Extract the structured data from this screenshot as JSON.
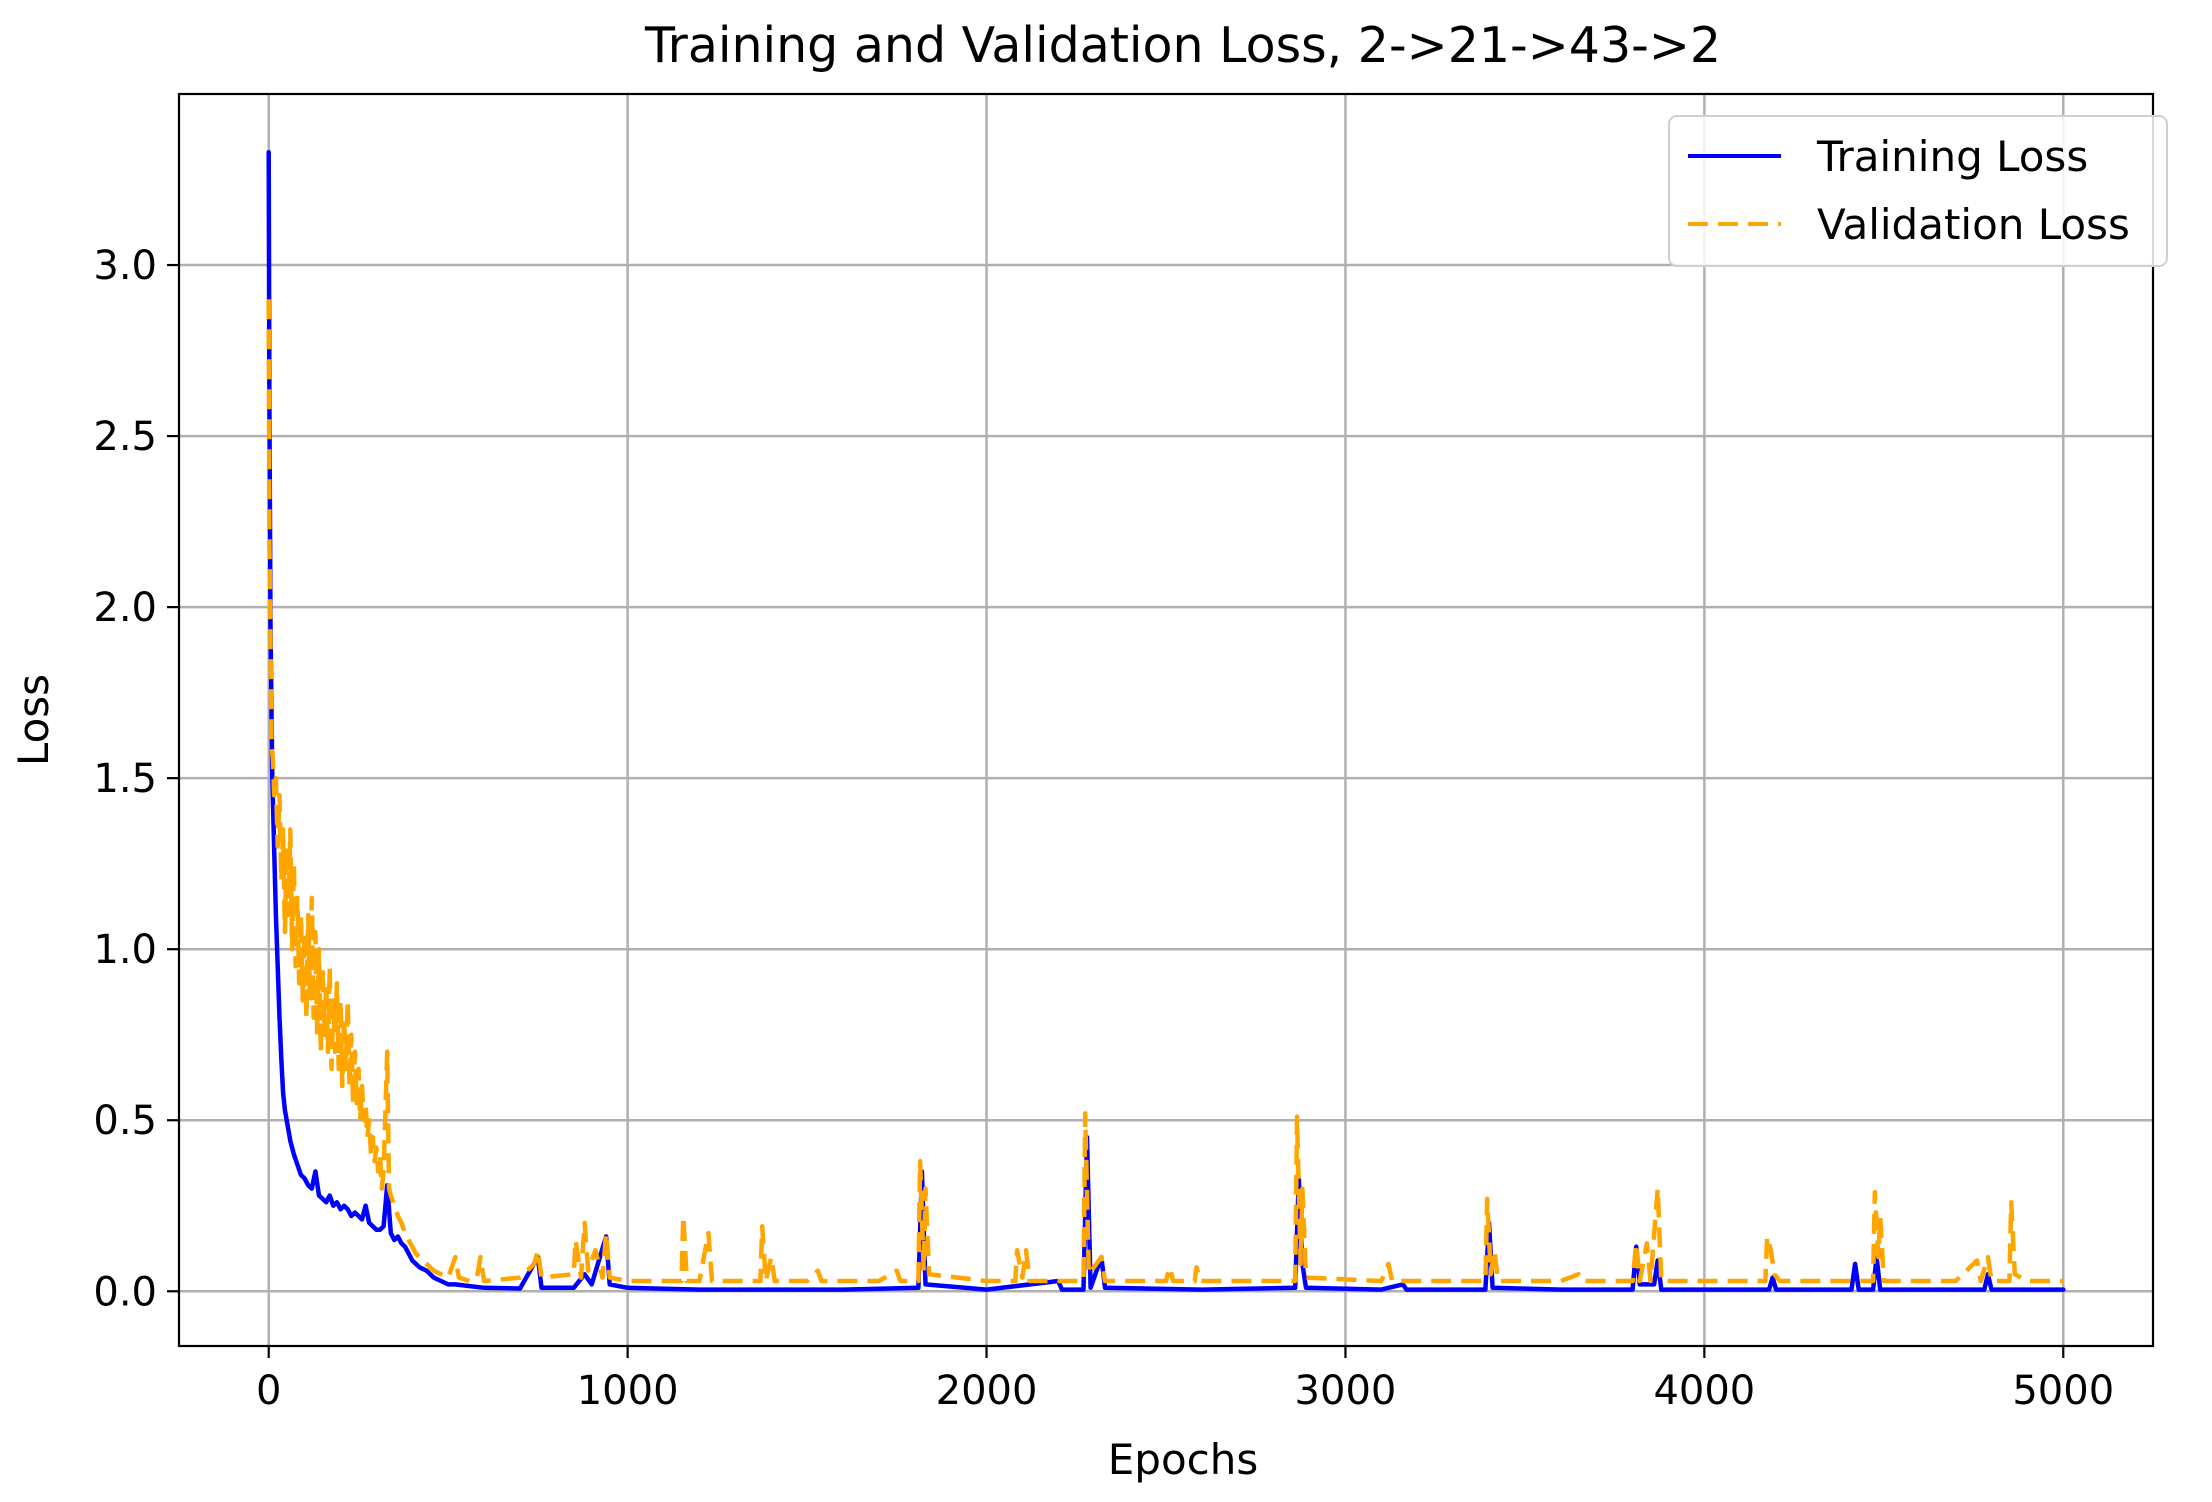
{
  "chart_data": {
    "type": "line",
    "title": "Training and Validation Loss, 2->21->43->2",
    "xlabel": "Epochs",
    "ylabel": "Loss",
    "xlim": [
      -250,
      5250
    ],
    "ylim": [
      -0.16,
      3.5
    ],
    "xticks": [
      0,
      1000,
      2000,
      3000,
      4000,
      5000
    ],
    "xtick_labels": [
      "0",
      "1000",
      "2000",
      "3000",
      "4000",
      "5000"
    ],
    "yticks": [
      0.0,
      0.5,
      1.0,
      1.5,
      2.0,
      2.5,
      3.0
    ],
    "ytick_labels": [
      "0.0",
      "0.5",
      "1.0",
      "1.5",
      "2.0",
      "2.5",
      "3.0"
    ],
    "grid": true,
    "legend_position": "top-right",
    "series": [
      {
        "name": "Training Loss",
        "color": "#0000ff",
        "style": "solid",
        "points": [
          [
            0,
            3.33
          ],
          [
            2,
            2.6
          ],
          [
            5,
            1.95
          ],
          [
            10,
            1.5
          ],
          [
            15,
            1.3
          ],
          [
            20,
            1.1
          ],
          [
            25,
            0.95
          ],
          [
            30,
            0.8
          ],
          [
            35,
            0.68
          ],
          [
            40,
            0.58
          ],
          [
            45,
            0.53
          ],
          [
            50,
            0.5
          ],
          [
            60,
            0.44
          ],
          [
            70,
            0.4
          ],
          [
            80,
            0.37
          ],
          [
            90,
            0.34
          ],
          [
            100,
            0.33
          ],
          [
            110,
            0.31
          ],
          [
            120,
            0.3
          ],
          [
            130,
            0.35
          ],
          [
            140,
            0.28
          ],
          [
            150,
            0.27
          ],
          [
            160,
            0.26
          ],
          [
            170,
            0.28
          ],
          [
            180,
            0.25
          ],
          [
            190,
            0.26
          ],
          [
            200,
            0.24
          ],
          [
            210,
            0.25
          ],
          [
            220,
            0.24
          ],
          [
            230,
            0.22
          ],
          [
            240,
            0.23
          ],
          [
            250,
            0.22
          ],
          [
            260,
            0.21
          ],
          [
            270,
            0.25
          ],
          [
            280,
            0.2
          ],
          [
            290,
            0.19
          ],
          [
            300,
            0.18
          ],
          [
            310,
            0.18
          ],
          [
            320,
            0.19
          ],
          [
            330,
            0.31
          ],
          [
            340,
            0.17
          ],
          [
            350,
            0.15
          ],
          [
            360,
            0.16
          ],
          [
            370,
            0.14
          ],
          [
            380,
            0.13
          ],
          [
            390,
            0.11
          ],
          [
            400,
            0.09
          ],
          [
            420,
            0.07
          ],
          [
            440,
            0.06
          ],
          [
            460,
            0.04
          ],
          [
            480,
            0.03
          ],
          [
            500,
            0.02
          ],
          [
            520,
            0.02
          ],
          [
            560,
            0.015
          ],
          [
            600,
            0.01
          ],
          [
            700,
            0.008
          ],
          [
            750,
            0.1
          ],
          [
            760,
            0.01
          ],
          [
            850,
            0.01
          ],
          [
            880,
            0.05
          ],
          [
            900,
            0.02
          ],
          [
            940,
            0.16
          ],
          [
            950,
            0.02
          ],
          [
            1000,
            0.01
          ],
          [
            1200,
            0.005
          ],
          [
            1400,
            0.005
          ],
          [
            1600,
            0.005
          ],
          [
            1810,
            0.01
          ],
          [
            1820,
            0.35
          ],
          [
            1830,
            0.02
          ],
          [
            2000,
            0.005
          ],
          [
            2200,
            0.03
          ],
          [
            2210,
            0.005
          ],
          [
            2270,
            0.005
          ],
          [
            2280,
            0.45
          ],
          [
            2290,
            0.01
          ],
          [
            2320,
            0.1
          ],
          [
            2330,
            0.01
          ],
          [
            2600,
            0.005
          ],
          [
            2860,
            0.01
          ],
          [
            2870,
            0.33
          ],
          [
            2880,
            0.08
          ],
          [
            2890,
            0.01
          ],
          [
            3100,
            0.005
          ],
          [
            3160,
            0.02
          ],
          [
            3170,
            0.005
          ],
          [
            3390,
            0.005
          ],
          [
            3400,
            0.2
          ],
          [
            3410,
            0.01
          ],
          [
            3600,
            0.005
          ],
          [
            3800,
            0.005
          ],
          [
            3810,
            0.13
          ],
          [
            3820,
            0.02
          ],
          [
            3860,
            0.02
          ],
          [
            3870,
            0.09
          ],
          [
            3880,
            0.005
          ],
          [
            4000,
            0.005
          ],
          [
            4180,
            0.005
          ],
          [
            4190,
            0.04
          ],
          [
            4200,
            0.005
          ],
          [
            4410,
            0.005
          ],
          [
            4420,
            0.08
          ],
          [
            4430,
            0.005
          ],
          [
            4470,
            0.005
          ],
          [
            4480,
            0.1
          ],
          [
            4490,
            0.005
          ],
          [
            4600,
            0.005
          ],
          [
            4780,
            0.005
          ],
          [
            4790,
            0.05
          ],
          [
            4800,
            0.005
          ],
          [
            4900,
            0.005
          ],
          [
            5000,
            0.005
          ]
        ]
      },
      {
        "name": "Validation Loss",
        "color": "#ffa500",
        "style": "dashed",
        "points": [
          [
            0,
            2.9
          ],
          [
            2,
            2.2
          ],
          [
            5,
            1.9
          ],
          [
            8,
            1.6
          ],
          [
            12,
            1.55
          ],
          [
            15,
            1.45
          ],
          [
            20,
            1.5
          ],
          [
            25,
            1.3
          ],
          [
            30,
            1.45
          ],
          [
            35,
            1.2
          ],
          [
            40,
            1.35
          ],
          [
            45,
            1.05
          ],
          [
            50,
            1.3
          ],
          [
            55,
            1.1
          ],
          [
            60,
            1.35
          ],
          [
            65,
            1.0
          ],
          [
            70,
            1.25
          ],
          [
            75,
            0.95
          ],
          [
            80,
            1.15
          ],
          [
            85,
            0.9
          ],
          [
            90,
            1.1
          ],
          [
            95,
            0.85
          ],
          [
            100,
            1.05
          ],
          [
            105,
            0.8
          ],
          [
            110,
            1.1
          ],
          [
            115,
            0.85
          ],
          [
            120,
            1.15
          ],
          [
            125,
            0.8
          ],
          [
            130,
            1.05
          ],
          [
            135,
            0.75
          ],
          [
            140,
            1.0
          ],
          [
            145,
            0.7
          ],
          [
            150,
            0.95
          ],
          [
            155,
            0.75
          ],
          [
            160,
            0.9
          ],
          [
            165,
            0.7
          ],
          [
            170,
            0.95
          ],
          [
            175,
            0.65
          ],
          [
            180,
            0.85
          ],
          [
            185,
            0.7
          ],
          [
            190,
            0.9
          ],
          [
            195,
            0.65
          ],
          [
            200,
            0.85
          ],
          [
            205,
            0.6
          ],
          [
            210,
            0.8
          ],
          [
            215,
            0.65
          ],
          [
            220,
            0.85
          ],
          [
            225,
            0.6
          ],
          [
            230,
            0.75
          ],
          [
            235,
            0.55
          ],
          [
            240,
            0.7
          ],
          [
            245,
            0.55
          ],
          [
            250,
            0.65
          ],
          [
            255,
            0.5
          ],
          [
            260,
            0.6
          ],
          [
            265,
            0.5
          ],
          [
            270,
            0.55
          ],
          [
            275,
            0.45
          ],
          [
            280,
            0.5
          ],
          [
            285,
            0.4
          ],
          [
            290,
            0.45
          ],
          [
            295,
            0.38
          ],
          [
            300,
            0.42
          ],
          [
            305,
            0.35
          ],
          [
            310,
            0.4
          ],
          [
            315,
            0.3
          ],
          [
            320,
            0.35
          ],
          [
            330,
            0.7
          ],
          [
            335,
            0.3
          ],
          [
            340,
            0.28
          ],
          [
            350,
            0.25
          ],
          [
            360,
            0.22
          ],
          [
            370,
            0.2
          ],
          [
            380,
            0.17
          ],
          [
            390,
            0.15
          ],
          [
            400,
            0.13
          ],
          [
            410,
            0.11
          ],
          [
            420,
            0.1
          ],
          [
            440,
            0.08
          ],
          [
            460,
            0.06
          ],
          [
            480,
            0.05
          ],
          [
            500,
            0.04
          ],
          [
            520,
            0.1
          ],
          [
            530,
            0.04
          ],
          [
            560,
            0.03
          ],
          [
            580,
            0.04
          ],
          [
            590,
            0.1
          ],
          [
            600,
            0.03
          ],
          [
            700,
            0.04
          ],
          [
            740,
            0.08
          ],
          [
            750,
            0.12
          ],
          [
            760,
            0.04
          ],
          [
            850,
            0.05
          ],
          [
            855,
            0.15
          ],
          [
            870,
            0.04
          ],
          [
            880,
            0.2
          ],
          [
            890,
            0.06
          ],
          [
            910,
            0.12
          ],
          [
            930,
            0.04
          ],
          [
            940,
            0.17
          ],
          [
            950,
            0.04
          ],
          [
            1000,
            0.03
          ],
          [
            1100,
            0.03
          ],
          [
            1150,
            0.03
          ],
          [
            1155,
            0.22
          ],
          [
            1165,
            0.03
          ],
          [
            1200,
            0.03
          ],
          [
            1225,
            0.17
          ],
          [
            1235,
            0.03
          ],
          [
            1300,
            0.03
          ],
          [
            1370,
            0.03
          ],
          [
            1375,
            0.19
          ],
          [
            1385,
            0.03
          ],
          [
            1400,
            0.1
          ],
          [
            1410,
            0.03
          ],
          [
            1500,
            0.03
          ],
          [
            1530,
            0.06
          ],
          [
            1540,
            0.03
          ],
          [
            1700,
            0.03
          ],
          [
            1750,
            0.06
          ],
          [
            1760,
            0.03
          ],
          [
            1810,
            0.03
          ],
          [
            1815,
            0.38
          ],
          [
            1825,
            0.06
          ],
          [
            1830,
            0.3
          ],
          [
            1840,
            0.05
          ],
          [
            2000,
            0.03
          ],
          [
            2080,
            0.03
          ],
          [
            2085,
            0.12
          ],
          [
            2100,
            0.04
          ],
          [
            2110,
            0.12
          ],
          [
            2120,
            0.03
          ],
          [
            2270,
            0.03
          ],
          [
            2275,
            0.52
          ],
          [
            2285,
            0.05
          ],
          [
            2320,
            0.1
          ],
          [
            2330,
            0.03
          ],
          [
            2500,
            0.03
          ],
          [
            2510,
            0.07
          ],
          [
            2520,
            0.03
          ],
          [
            2580,
            0.03
          ],
          [
            2585,
            0.07
          ],
          [
            2595,
            0.03
          ],
          [
            2860,
            0.03
          ],
          [
            2865,
            0.51
          ],
          [
            2875,
            0.08
          ],
          [
            2880,
            0.3
          ],
          [
            2890,
            0.04
          ],
          [
            3100,
            0.03
          ],
          [
            3120,
            0.08
          ],
          [
            3130,
            0.03
          ],
          [
            3390,
            0.03
          ],
          [
            3395,
            0.27
          ],
          [
            3405,
            0.05
          ],
          [
            3415,
            0.12
          ],
          [
            3425,
            0.03
          ],
          [
            3600,
            0.03
          ],
          [
            3650,
            0.05
          ],
          [
            3660,
            0.03
          ],
          [
            3800,
            0.03
          ],
          [
            3810,
            0.14
          ],
          [
            3820,
            0.03
          ],
          [
            3840,
            0.14
          ],
          [
            3850,
            0.03
          ],
          [
            3870,
            0.3
          ],
          [
            3880,
            0.03
          ],
          [
            4000,
            0.03
          ],
          [
            4170,
            0.03
          ],
          [
            4175,
            0.16
          ],
          [
            4185,
            0.12
          ],
          [
            4195,
            0.05
          ],
          [
            4210,
            0.03
          ],
          [
            4400,
            0.03
          ],
          [
            4470,
            0.03
          ],
          [
            4475,
            0.29
          ],
          [
            4485,
            0.1
          ],
          [
            4490,
            0.22
          ],
          [
            4500,
            0.03
          ],
          [
            4700,
            0.03
          ],
          [
            4760,
            0.09
          ],
          [
            4770,
            0.03
          ],
          [
            4790,
            0.1
          ],
          [
            4800,
            0.03
          ],
          [
            4850,
            0.03
          ],
          [
            4855,
            0.26
          ],
          [
            4865,
            0.05
          ],
          [
            4900,
            0.03
          ],
          [
            5000,
            0.03
          ]
        ]
      }
    ]
  }
}
